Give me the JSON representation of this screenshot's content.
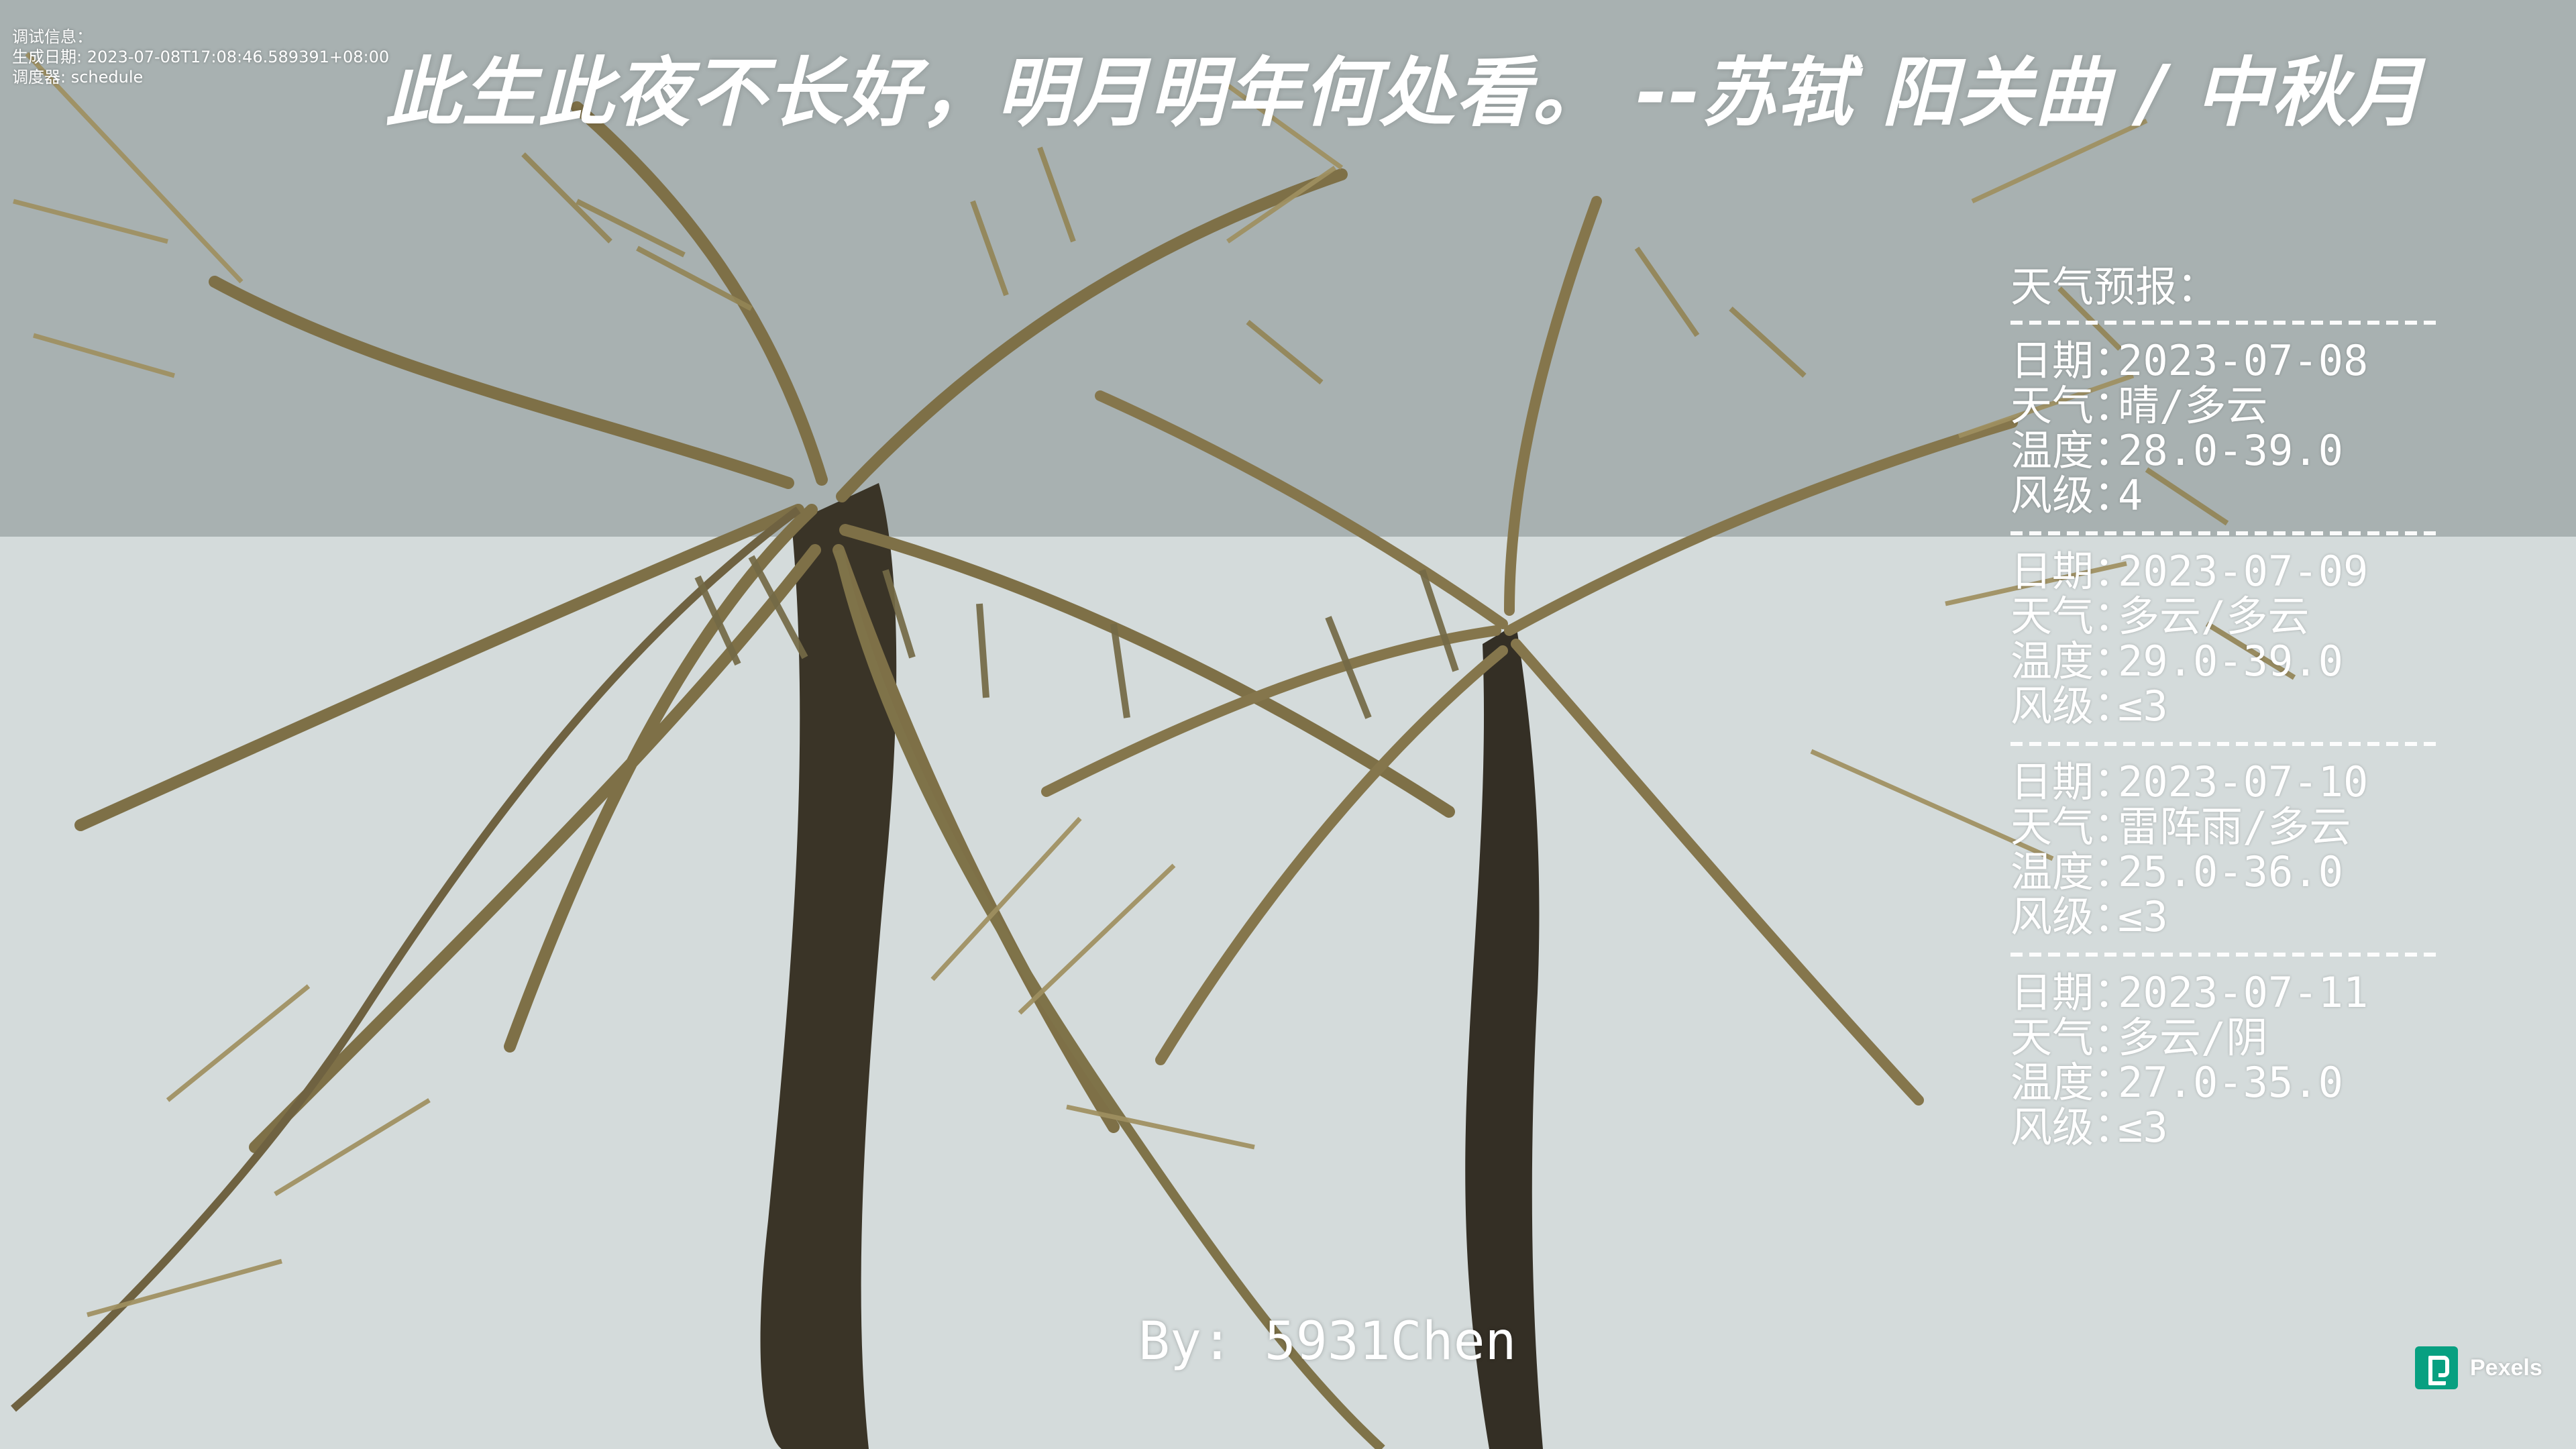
{
  "debug_info": {
    "label": "调试信息：",
    "generated": "生成日期: 2023-07-08T17:08:46.589391+08:00",
    "scheduler": "调度器: schedule"
  },
  "quote": {
    "text": "此生此夜不长好，明月明年何处看。 --苏轼 阳关曲 / 中秋月"
  },
  "weather": {
    "title": "天气预报：",
    "separator": "------------------------------",
    "forecasts": [
      {
        "date_label": "日期：",
        "date": "2023-07-08",
        "weather_label": "天气：",
        "weather": "晴/多云",
        "temp_label": "温度：",
        "temperature": "28.0-39.0",
        "wind_label": "风级：",
        "wind": "4"
      },
      {
        "date_label": "日期：",
        "date": "2023-07-09",
        "weather_label": "天气：",
        "weather": "多云/多云",
        "temp_label": "温度：",
        "temperature": "29.0-39.0",
        "wind_label": "风级：",
        "wind": "≤3"
      },
      {
        "date_label": "日期：",
        "date": "2023-07-10",
        "weather_label": "天气：",
        "weather": "雷阵雨/多云",
        "temp_label": "温度：",
        "temperature": "25.0-36.0",
        "wind_label": "风级：",
        "wind": "≤3"
      },
      {
        "date_label": "日期：",
        "date": "2023-07-11",
        "weather_label": "天气：",
        "weather": "多云/阴",
        "temp_label": "温度：",
        "temperature": "27.0-35.0",
        "wind_label": "风级：",
        "wind": "≤3"
      }
    ]
  },
  "author": {
    "text": "By: 5931Chen"
  },
  "watermark": {
    "brand": "Pexels",
    "brand_color": "#07a081"
  },
  "icons": {
    "pexels_logo": "pexels-logo-icon"
  }
}
